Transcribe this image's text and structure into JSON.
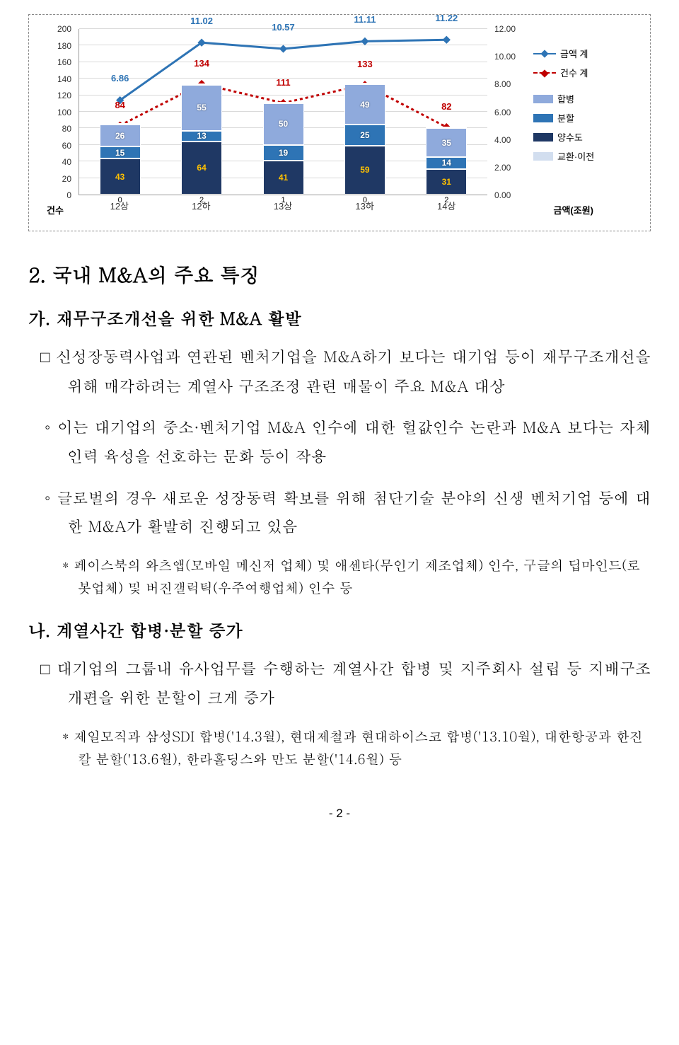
{
  "chart": {
    "left_axis": {
      "title": "건수",
      "min": 0,
      "max": 200,
      "step": 20
    },
    "right_axis": {
      "title": "금액(조원)",
      "min": 0,
      "max": 12,
      "step": 2
    },
    "categories": [
      "12상",
      "12하",
      "13상",
      "13하",
      "14상"
    ],
    "stacks": {
      "colors": {
        "s1": "#d2deef",
        "s2": "#8faadc",
        "s3": "#2e74b5",
        "s4": "#1f3864"
      },
      "data": [
        {
          "s1": 0,
          "s2": 26,
          "s3": 15,
          "s4": 43,
          "s1_label": "0"
        },
        {
          "s1": 2,
          "s2": 55,
          "s3": 13,
          "s4": 64,
          "s1_label": "2"
        },
        {
          "s1": 1,
          "s2": 50,
          "s3": 19,
          "s4": 41,
          "s1_label": "1"
        },
        {
          "s1": 0,
          "s2": 49,
          "s3": 25,
          "s4": 59,
          "s1_label": "0"
        },
        {
          "s1": 2,
          "s2": 35,
          "s3": 14,
          "s4": 31,
          "s1_label": "2"
        }
      ]
    },
    "line_amount": {
      "color": "#2e74b5",
      "values": [
        6.86,
        11.02,
        10.57,
        11.11,
        11.22
      ]
    },
    "line_count": {
      "color": "#c00000",
      "values": [
        84,
        134,
        111,
        133,
        82
      ]
    },
    "legend": {
      "amount": "금액 계",
      "count": "건수 계",
      "seg2": "합병",
      "seg3": "분할",
      "seg4": "양수도",
      "seg1": "교환·이전"
    }
  },
  "text": {
    "h2": "2. 국내 M&A의 주요 특징",
    "ga": "가. 재무구조개선을 위한 M&A 활발",
    "p1": "신성장동력사업과 연관된 벤처기업을 M&A하기 보다는 대기업 등이 재무구조개선을 위해 매각하려는 계열사 구조조정 관련 매물이 주요 M&A 대상",
    "p2": "이는 대기업의 중소·벤처기업 M&A 인수에 대한 헐값인수 논란과 M&A 보다는 자체인력 육성을 선호하는 문화 등이 작용",
    "p3": "글로벌의 경우 새로운 성장동력 확보를 위해 첨단기술 분야의 신생 벤처기업 등에 대한 M&A가 활발히 진행되고 있음",
    "n1": "* 페이스북의 와츠앱(모바일 메신저 업체) 및 애센타(무인기 제조업체) 인수, 구글의 딥마인드(로봇업체) 및 버진갤럭틱(우주여행업체) 인수 등",
    "na": "나. 계열사간 합병·분할 증가",
    "p4": "대기업의 그룹내 유사업무를 수행하는 계열사간 합병 및 지주회사 설립 등 지배구조 개편을 위한 분할이 크게 증가",
    "n2": "* 제일모직과 삼성SDI 합병('14.3월), 현대제철과 현대하이스코 합병('13.10월), 대한항공과 한진칼 분할('13.6월), 한라홀딩스와 만도 분할('14.6월) 등",
    "page": "- 2 -"
  }
}
